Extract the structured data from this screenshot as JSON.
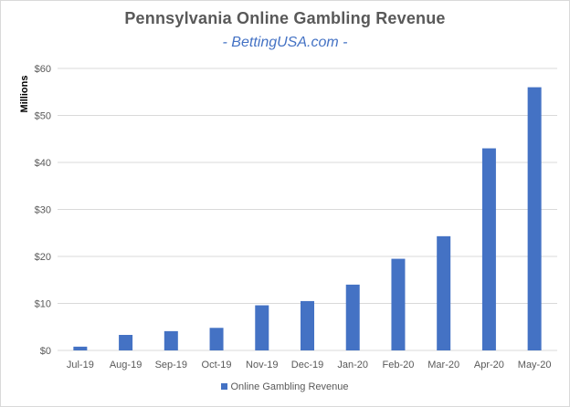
{
  "chart_data": {
    "type": "bar",
    "title": "Pennsylvania Online Gambling Revenue",
    "subtitle": "- BettingUSA.com -",
    "ylabel": "Millions",
    "xlabel": "",
    "ylim": [
      0,
      60
    ],
    "yticks": [
      0,
      10,
      20,
      30,
      40,
      50,
      60
    ],
    "ytick_labels": [
      "$0",
      "$10",
      "$20",
      "$30",
      "$40",
      "$50",
      "$60"
    ],
    "grid": true,
    "legend_position": "bottom",
    "categories": [
      "Jul-19",
      "Aug-19",
      "Sep-19",
      "Oct-19",
      "Nov-19",
      "Dec-19",
      "Jan-20",
      "Feb-20",
      "Mar-20",
      "Apr-20",
      "May-20"
    ],
    "series": [
      {
        "name": "Online Gambling Revenue",
        "color": "#4472c4",
        "values": [
          0.8,
          3.3,
          4.1,
          4.8,
          9.6,
          10.5,
          14.0,
          19.5,
          24.3,
          43.0,
          56.0
        ]
      }
    ]
  }
}
